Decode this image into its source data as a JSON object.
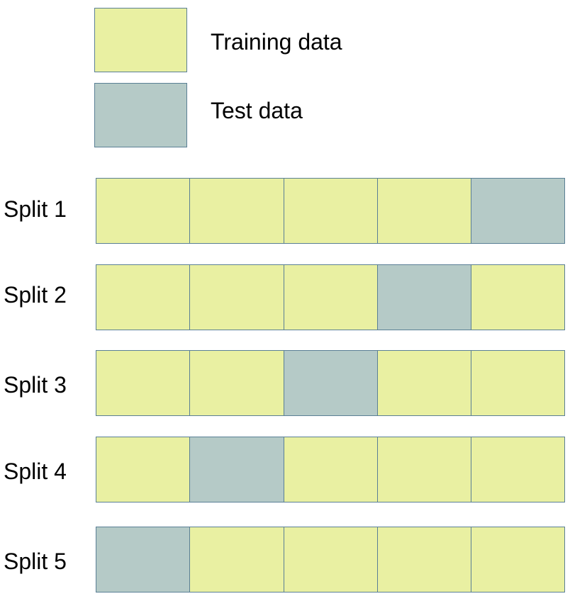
{
  "colors": {
    "training": "#e9f0a2",
    "test": "#b5cac7",
    "border": "#5a7f95"
  },
  "legend": {
    "training_label": "Training data",
    "test_label": "Test data"
  },
  "splits": [
    {
      "label": "Split 1",
      "test_fold": 5
    },
    {
      "label": "Split 2",
      "test_fold": 4
    },
    {
      "label": "Split 3",
      "test_fold": 3
    },
    {
      "label": "Split 4",
      "test_fold": 2
    },
    {
      "label": "Split 5",
      "test_fold": 1
    }
  ],
  "folds_per_split": 5
}
